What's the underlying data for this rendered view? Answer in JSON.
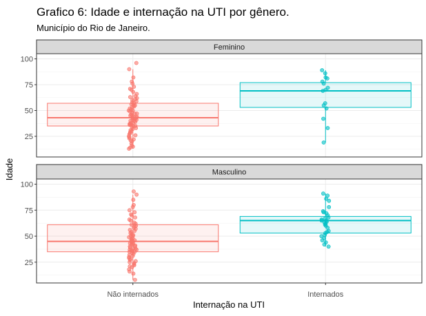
{
  "chart_data": {
    "type": "boxplot",
    "title": "Grafico 6: Idade e internação na UTI por gênero.",
    "subtitle": "Município do Rio de Janeiro.",
    "xlabel": "Internação na UTI",
    "ylabel": "Idade",
    "categories": [
      "Não internados",
      "Internados"
    ],
    "y_ticks": [
      25,
      50,
      75,
      100
    ],
    "ylim": [
      5,
      105
    ],
    "grid": true,
    "colors": {
      "Não internados": "#F8766D",
      "Internados": "#00BFC4"
    },
    "facets": [
      {
        "name": "Feminino",
        "boxes": [
          {
            "category": "Não internados",
            "stats": {
              "min": 13,
              "q1": 35,
              "median": 43,
              "q3": 57,
              "max": 90
            },
            "points": [
              96,
              90,
              82,
              78,
              76,
              73,
              71,
              70,
              68,
              66,
              64,
              63,
              62,
              61,
              60,
              59,
              58,
              57,
              56,
              55,
              55,
              54,
              53,
              52,
              51,
              50,
              50,
              49,
              48,
              47,
              47,
              46,
              45,
              45,
              44,
              44,
              43,
              43,
              42,
              42,
              41,
              41,
              40,
              40,
              39,
              38,
              38,
              37,
              37,
              36,
              36,
              35,
              35,
              34,
              33,
              32,
              31,
              30,
              29,
              28,
              27,
              26,
              25,
              24,
              23,
              22,
              21,
              20,
              18,
              16,
              15,
              14,
              13
            ]
          },
          {
            "category": "Internados",
            "stats": {
              "min": 19,
              "q1": 53,
              "median": 69,
              "q3": 77,
              "max": 89
            },
            "points": [
              89,
              86,
              82,
              81,
              78,
              76,
              72,
              70,
              69,
              57,
              55,
              52,
              42,
              33,
              19
            ]
          }
        ]
      },
      {
        "name": "Masculino",
        "boxes": [
          {
            "category": "Não internados",
            "stats": {
              "min": 8,
              "q1": 35,
              "median": 45,
              "q3": 61,
              "max": 90
            },
            "points": [
              93,
              90,
              85,
              80,
              78,
              75,
              73,
              71,
              70,
              68,
              66,
              65,
              63,
              62,
              61,
              60,
              59,
              58,
              57,
              56,
              55,
              54,
              53,
              52,
              51,
              50,
              50,
              49,
              48,
              47,
              47,
              46,
              46,
              45,
              45,
              44,
              44,
              43,
              43,
              42,
              42,
              41,
              40,
              40,
              39,
              38,
              38,
              37,
              37,
              36,
              36,
              35,
              35,
              34,
              33,
              32,
              31,
              30,
              29,
              28,
              27,
              26,
              25,
              24,
              23,
              22,
              21,
              20,
              18,
              16,
              14,
              8
            ]
          },
          {
            "category": "Internados",
            "stats": {
              "min": 40,
              "q1": 53,
              "median": 65,
              "q3": 69,
              "max": 91
            },
            "points": [
              91,
              89,
              86,
              84,
              78,
              74,
              73,
              72,
              70,
              68,
              67,
              66,
              65,
              65,
              64,
              63,
              62,
              61,
              60,
              58,
              55,
              54,
              53,
              51,
              50,
              48,
              46,
              44,
              42,
              40
            ]
          }
        ]
      }
    ]
  }
}
